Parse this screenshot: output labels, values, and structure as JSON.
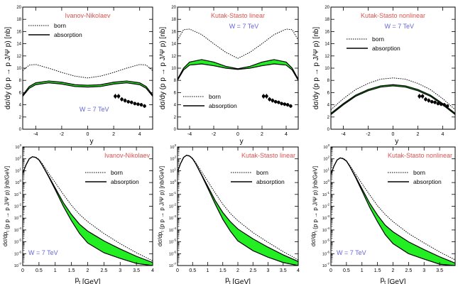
{
  "colors": {
    "title": "#d9534f",
    "energy": "#6666dd",
    "band": "#22ee22",
    "axis": "#000000"
  },
  "chart_data": [
    {
      "type": "line",
      "panel": "top",
      "title": "Ivanov-Nikolaev",
      "xlabel": "y",
      "ylabel": "dσ/dy (p p → p J/Ψ p) [nb]",
      "xlim": [
        -5,
        5
      ],
      "ylim": [
        0,
        20
      ],
      "xticks": [
        -4,
        -2,
        0,
        2,
        4
      ],
      "yticks": [
        0,
        2,
        4,
        6,
        8,
        10,
        12,
        14,
        16,
        18,
        20
      ],
      "energy_label": "W = 7 TeV",
      "legend": {
        "born": "born",
        "absorption": "absorption",
        "placement": "top-left"
      },
      "series": [
        {
          "name": "born",
          "style": "dotted",
          "x": [
            -5,
            -4.5,
            -4,
            -3,
            -2,
            -1,
            0,
            1,
            2,
            3,
            4,
            4.5,
            5
          ],
          "y": [
            9.6,
            10.5,
            10.6,
            10.0,
            9.3,
            8.7,
            8.4,
            8.7,
            9.3,
            10.0,
            10.6,
            10.5,
            9.6
          ]
        },
        {
          "name": "absorption",
          "style": "band",
          "x": [
            -5,
            -4.5,
            -4,
            -3,
            -2,
            -1,
            0,
            1,
            2,
            3,
            4,
            4.5,
            5
          ],
          "y_low": [
            5.4,
            6.7,
            7.3,
            7.6,
            7.4,
            7.0,
            6.9,
            7.0,
            7.4,
            7.6,
            7.3,
            6.7,
            5.4
          ],
          "y_high": [
            5.6,
            7.0,
            7.6,
            7.9,
            7.7,
            7.3,
            7.2,
            7.3,
            7.7,
            7.9,
            7.6,
            7.0,
            5.6
          ]
        },
        {
          "name": "data",
          "style": "points",
          "x": [
            2.125,
            2.375,
            2.625,
            2.875,
            3.125,
            3.375,
            3.625,
            3.875,
            4.125,
            4.375
          ],
          "y": [
            5.4,
            5.4,
            4.9,
            4.7,
            4.5,
            4.4,
            4.2,
            4.1,
            4.0,
            3.8
          ],
          "err": [
            0.4,
            0.4,
            0.35,
            0.35,
            0.3,
            0.3,
            0.3,
            0.3,
            0.3,
            0.3
          ]
        }
      ]
    },
    {
      "type": "line",
      "panel": "top",
      "title": "Kutak-Stasto linear",
      "xlabel": "y",
      "ylabel": "dσ/dy (p p → p J/Ψ p) [nb]",
      "xlim": [
        -5,
        5
      ],
      "ylim": [
        0,
        20
      ],
      "xticks": [
        -4,
        -2,
        0,
        2,
        4
      ],
      "yticks": [
        0,
        2,
        4,
        6,
        8,
        10,
        12,
        14,
        16,
        18,
        20
      ],
      "energy_label": "W = 7 TeV",
      "legend": {
        "born": "born",
        "absorption": "absorption",
        "placement": "bottom-left"
      },
      "series": [
        {
          "name": "born",
          "style": "dotted",
          "x": [
            -5,
            -4.5,
            -4,
            -3,
            -2,
            -1,
            0,
            1,
            2,
            3,
            4,
            4.5,
            5
          ],
          "y": [
            14.6,
            16.3,
            16.4,
            15.5,
            14.0,
            12.6,
            11.6,
            12.6,
            14.0,
            15.5,
            16.4,
            16.3,
            14.6
          ]
        },
        {
          "name": "absorption",
          "style": "band",
          "x": [
            -5,
            -4.5,
            -4,
            -3,
            -2,
            -1,
            0,
            1,
            2,
            3,
            4,
            4.5,
            5
          ],
          "y_low": [
            8.0,
            9.7,
            10.5,
            10.7,
            10.4,
            10.0,
            9.8,
            10.0,
            10.4,
            10.7,
            10.5,
            9.7,
            8.0
          ],
          "y_high": [
            8.2,
            10.0,
            11.0,
            11.4,
            11.0,
            10.3,
            9.9,
            10.3,
            11.0,
            11.4,
            11.0,
            10.0,
            8.2
          ]
        },
        {
          "name": "data",
          "style": "points",
          "x": [
            2.125,
            2.375,
            2.625,
            2.875,
            3.125,
            3.375,
            3.625,
            3.875,
            4.125,
            4.375
          ],
          "y": [
            5.4,
            5.4,
            4.9,
            4.7,
            4.5,
            4.4,
            4.2,
            4.1,
            4.0,
            3.8
          ],
          "err": [
            0.4,
            0.4,
            0.35,
            0.35,
            0.3,
            0.3,
            0.3,
            0.3,
            0.3,
            0.3
          ]
        }
      ]
    },
    {
      "type": "line",
      "panel": "top",
      "title": "Kutak-Stasto nonlinear",
      "xlabel": "y",
      "ylabel": "dσ/dy (p p → p J/Ψ p) [nb]",
      "xlim": [
        -5,
        5
      ],
      "ylim": [
        0,
        20
      ],
      "xticks": [
        -4,
        -2,
        0,
        2,
        4
      ],
      "yticks": [
        0,
        2,
        4,
        6,
        8,
        10,
        12,
        14,
        16,
        18,
        20
      ],
      "energy_label": "W = 7 TeV",
      "legend": {
        "born": "born",
        "absorption": "absorption",
        "placement": "top-left"
      },
      "series": [
        {
          "name": "born",
          "style": "dotted",
          "x": [
            -5,
            -4,
            -3,
            -2,
            -1,
            0,
            1,
            2,
            3,
            4,
            5
          ],
          "y": [
            3.2,
            5.0,
            6.5,
            7.5,
            8.2,
            8.4,
            8.2,
            7.5,
            6.5,
            5.0,
            3.2
          ]
        },
        {
          "name": "absorption",
          "style": "band",
          "x": [
            -5,
            -4,
            -3,
            -2,
            -1,
            0,
            1,
            2,
            3,
            4,
            5
          ],
          "y_low": [
            2.4,
            4.0,
            5.4,
            6.3,
            6.9,
            7.1,
            6.9,
            6.3,
            5.4,
            4.0,
            2.4
          ],
          "y_high": [
            2.6,
            4.2,
            5.6,
            6.5,
            7.1,
            7.3,
            7.1,
            6.5,
            5.6,
            4.2,
            2.6
          ]
        },
        {
          "name": "data",
          "style": "points",
          "x": [
            2.125,
            2.375,
            2.625,
            2.875,
            3.125,
            3.375,
            3.625,
            3.875,
            4.125,
            4.375
          ],
          "y": [
            5.4,
            5.4,
            4.9,
            4.7,
            4.5,
            4.4,
            4.2,
            4.1,
            4.0,
            3.8
          ],
          "err": [
            0.4,
            0.4,
            0.35,
            0.35,
            0.3,
            0.3,
            0.3,
            0.3,
            0.3,
            0.3
          ]
        }
      ]
    },
    {
      "type": "line",
      "panel": "bottom",
      "title": "Ivanov-Nikolaev",
      "log_y": true,
      "xlabel": "p_t [GeV]",
      "ylabel": "dσ/dp_t (p p → p J/Ψ p) [nb/GeV]",
      "xlim": [
        0,
        4
      ],
      "ylim": [
        1e-07,
        1000
      ],
      "xticks": [
        0,
        0.5,
        1,
        1.5,
        2,
        2.5,
        3,
        3.5,
        4
      ],
      "xtick_labels": [
        "0",
        "0.5",
        "1",
        "1.5",
        "2",
        "2.5",
        "3",
        "3.5",
        "4"
      ],
      "ytick_exponents": [
        -7,
        -6,
        -5,
        -4,
        -3,
        -2,
        -1,
        0,
        1,
        2,
        3
      ],
      "energy_label": "W = 7 TeV",
      "legend": {
        "born": "born",
        "absorption": "absorption",
        "placement": "top-right"
      },
      "series": [
        {
          "name": "born",
          "style": "dotted",
          "x": [
            0,
            0.1,
            0.2,
            0.3,
            0.4,
            0.5,
            0.6,
            0.8,
            1,
            1.25,
            1.5,
            1.75,
            2,
            2.5,
            3,
            3.5,
            4
          ],
          "y": [
            6,
            30,
            100,
            150,
            140,
            90,
            40,
            6,
            1,
            0.1,
            0.012,
            0.002,
            0.0005,
            5e-05,
            7e-06,
            1.2e-06,
            2.5e-07
          ]
        },
        {
          "name": "absorption",
          "style": "band",
          "x": [
            0,
            0.1,
            0.2,
            0.3,
            0.4,
            0.5,
            0.6,
            0.8,
            1,
            1.25,
            1.5,
            1.75,
            2,
            2.5,
            3,
            3.5,
            4
          ],
          "y_low": [
            6,
            30,
            100,
            150,
            130,
            80,
            30,
            3,
            0.25,
            0.01,
            0.0006,
            5e-05,
            8e-06,
            1.2e-06,
            4e-07,
            1.5e-07,
            1e-07
          ],
          "y_high": [
            6,
            30,
            100,
            150,
            130,
            80,
            30,
            3.5,
            0.35,
            0.02,
            0.002,
            0.0003,
            8e-05,
            1.2e-05,
            2.5e-06,
            6e-07,
            1.8e-07
          ]
        }
      ]
    },
    {
      "type": "line",
      "panel": "bottom",
      "title": "Kutak-Stasto linear",
      "log_y": true,
      "xlabel": "p_t [GeV]",
      "ylabel": "dσ/dp_t (p p → p J/Ψ p) [nb/GeV]",
      "xlim": [
        0,
        4
      ],
      "ylim": [
        1e-07,
        1000
      ],
      "xticks": [
        0,
        0.5,
        1,
        1.5,
        2,
        2.5,
        3,
        3.5,
        4
      ],
      "xtick_labels": [
        "0",
        "0.5",
        "1",
        "1.5",
        "2",
        "2.5",
        "3",
        "3.5",
        "4"
      ],
      "ytick_exponents": [
        -7,
        -6,
        -5,
        -4,
        -3,
        -2,
        -1,
        0,
        1,
        2,
        3
      ],
      "energy_label": "",
      "legend": {
        "born": "born",
        "absorption": "absorption",
        "placement": "top-right"
      },
      "series": [
        {
          "name": "born",
          "style": "dotted",
          "x": [
            0,
            0.1,
            0.2,
            0.3,
            0.4,
            0.5,
            0.6,
            0.8,
            1,
            1.25,
            1.5,
            1.75,
            2,
            2.5,
            3,
            3.5,
            4
          ],
          "y": [
            8,
            40,
            130,
            200,
            180,
            110,
            50,
            8,
            1.3,
            0.13,
            0.015,
            0.0025,
            0.0006,
            6e-05,
            9e-06,
            1.5e-06,
            3e-07
          ]
        },
        {
          "name": "absorption",
          "style": "band",
          "x": [
            0,
            0.1,
            0.2,
            0.3,
            0.4,
            0.5,
            0.6,
            0.8,
            1,
            1.25,
            1.5,
            1.75,
            2,
            2.5,
            3,
            3.5,
            4
          ],
          "y_low": [
            8,
            40,
            130,
            200,
            170,
            100,
            40,
            4,
            0.35,
            0.015,
            0.0008,
            8e-05,
            1.2e-05,
            1.8e-06,
            5e-07,
            1.8e-07,
            1e-07
          ],
          "y_high": [
            8,
            40,
            130,
            200,
            170,
            100,
            40,
            4.5,
            0.5,
            0.03,
            0.003,
            0.0005,
            0.00012,
            1.8e-05,
            3.5e-06,
            8e-07,
            2.2e-07
          ]
        }
      ]
    },
    {
      "type": "line",
      "panel": "bottom",
      "title": "Kutak-Stasto nonlinear",
      "log_y": true,
      "xlabel": "p_t [GeV]",
      "ylabel": "dσ/dp_t (p p → p J/Ψ p) [nb/GeV]",
      "xlim": [
        0,
        4
      ],
      "ylim": [
        1e-07,
        1000
      ],
      "xticks": [
        0,
        0.5,
        1,
        1.5,
        2,
        2.5,
        3,
        3.5,
        4
      ],
      "xtick_labels": [
        "0",
        "0.5",
        "1",
        "1.5",
        "2",
        "2.5",
        "3",
        "3.5",
        ""
      ],
      "ytick_exponents": [
        -7,
        -6,
        -5,
        -4,
        -3,
        -2,
        -1,
        0,
        1,
        2,
        3
      ],
      "energy_label": "W = 7 TeV",
      "legend": {
        "born": "born",
        "absorption": "absorption",
        "placement": "top-right"
      },
      "series": [
        {
          "name": "born",
          "style": "dotted",
          "x": [
            0,
            0.1,
            0.2,
            0.3,
            0.4,
            0.5,
            0.6,
            0.8,
            1,
            1.25,
            1.5,
            1.75,
            2,
            2.5,
            3,
            3.5,
            4
          ],
          "y": [
            5,
            25,
            80,
            120,
            110,
            70,
            30,
            5,
            0.8,
            0.09,
            0.011,
            0.002,
            0.0005,
            5e-05,
            8e-06,
            1.4e-06,
            3e-07
          ]
        },
        {
          "name": "absorption",
          "style": "band",
          "x": [
            0,
            0.1,
            0.2,
            0.3,
            0.4,
            0.5,
            0.6,
            0.8,
            1,
            1.25,
            1.5,
            1.75,
            2,
            2.5,
            3,
            3.5,
            4
          ],
          "y_low": [
            5,
            25,
            80,
            120,
            100,
            65,
            25,
            2.5,
            0.2,
            0.008,
            0.0005,
            4e-05,
            7e-06,
            1e-06,
            3.5e-07,
            1.3e-07,
            1e-07
          ],
          "y_high": [
            5,
            25,
            80,
            120,
            100,
            65,
            25,
            3,
            0.3,
            0.018,
            0.0018,
            0.00025,
            7e-05,
            1e-05,
            2.2e-06,
            5.5e-07,
            1.6e-07
          ]
        }
      ]
    }
  ]
}
